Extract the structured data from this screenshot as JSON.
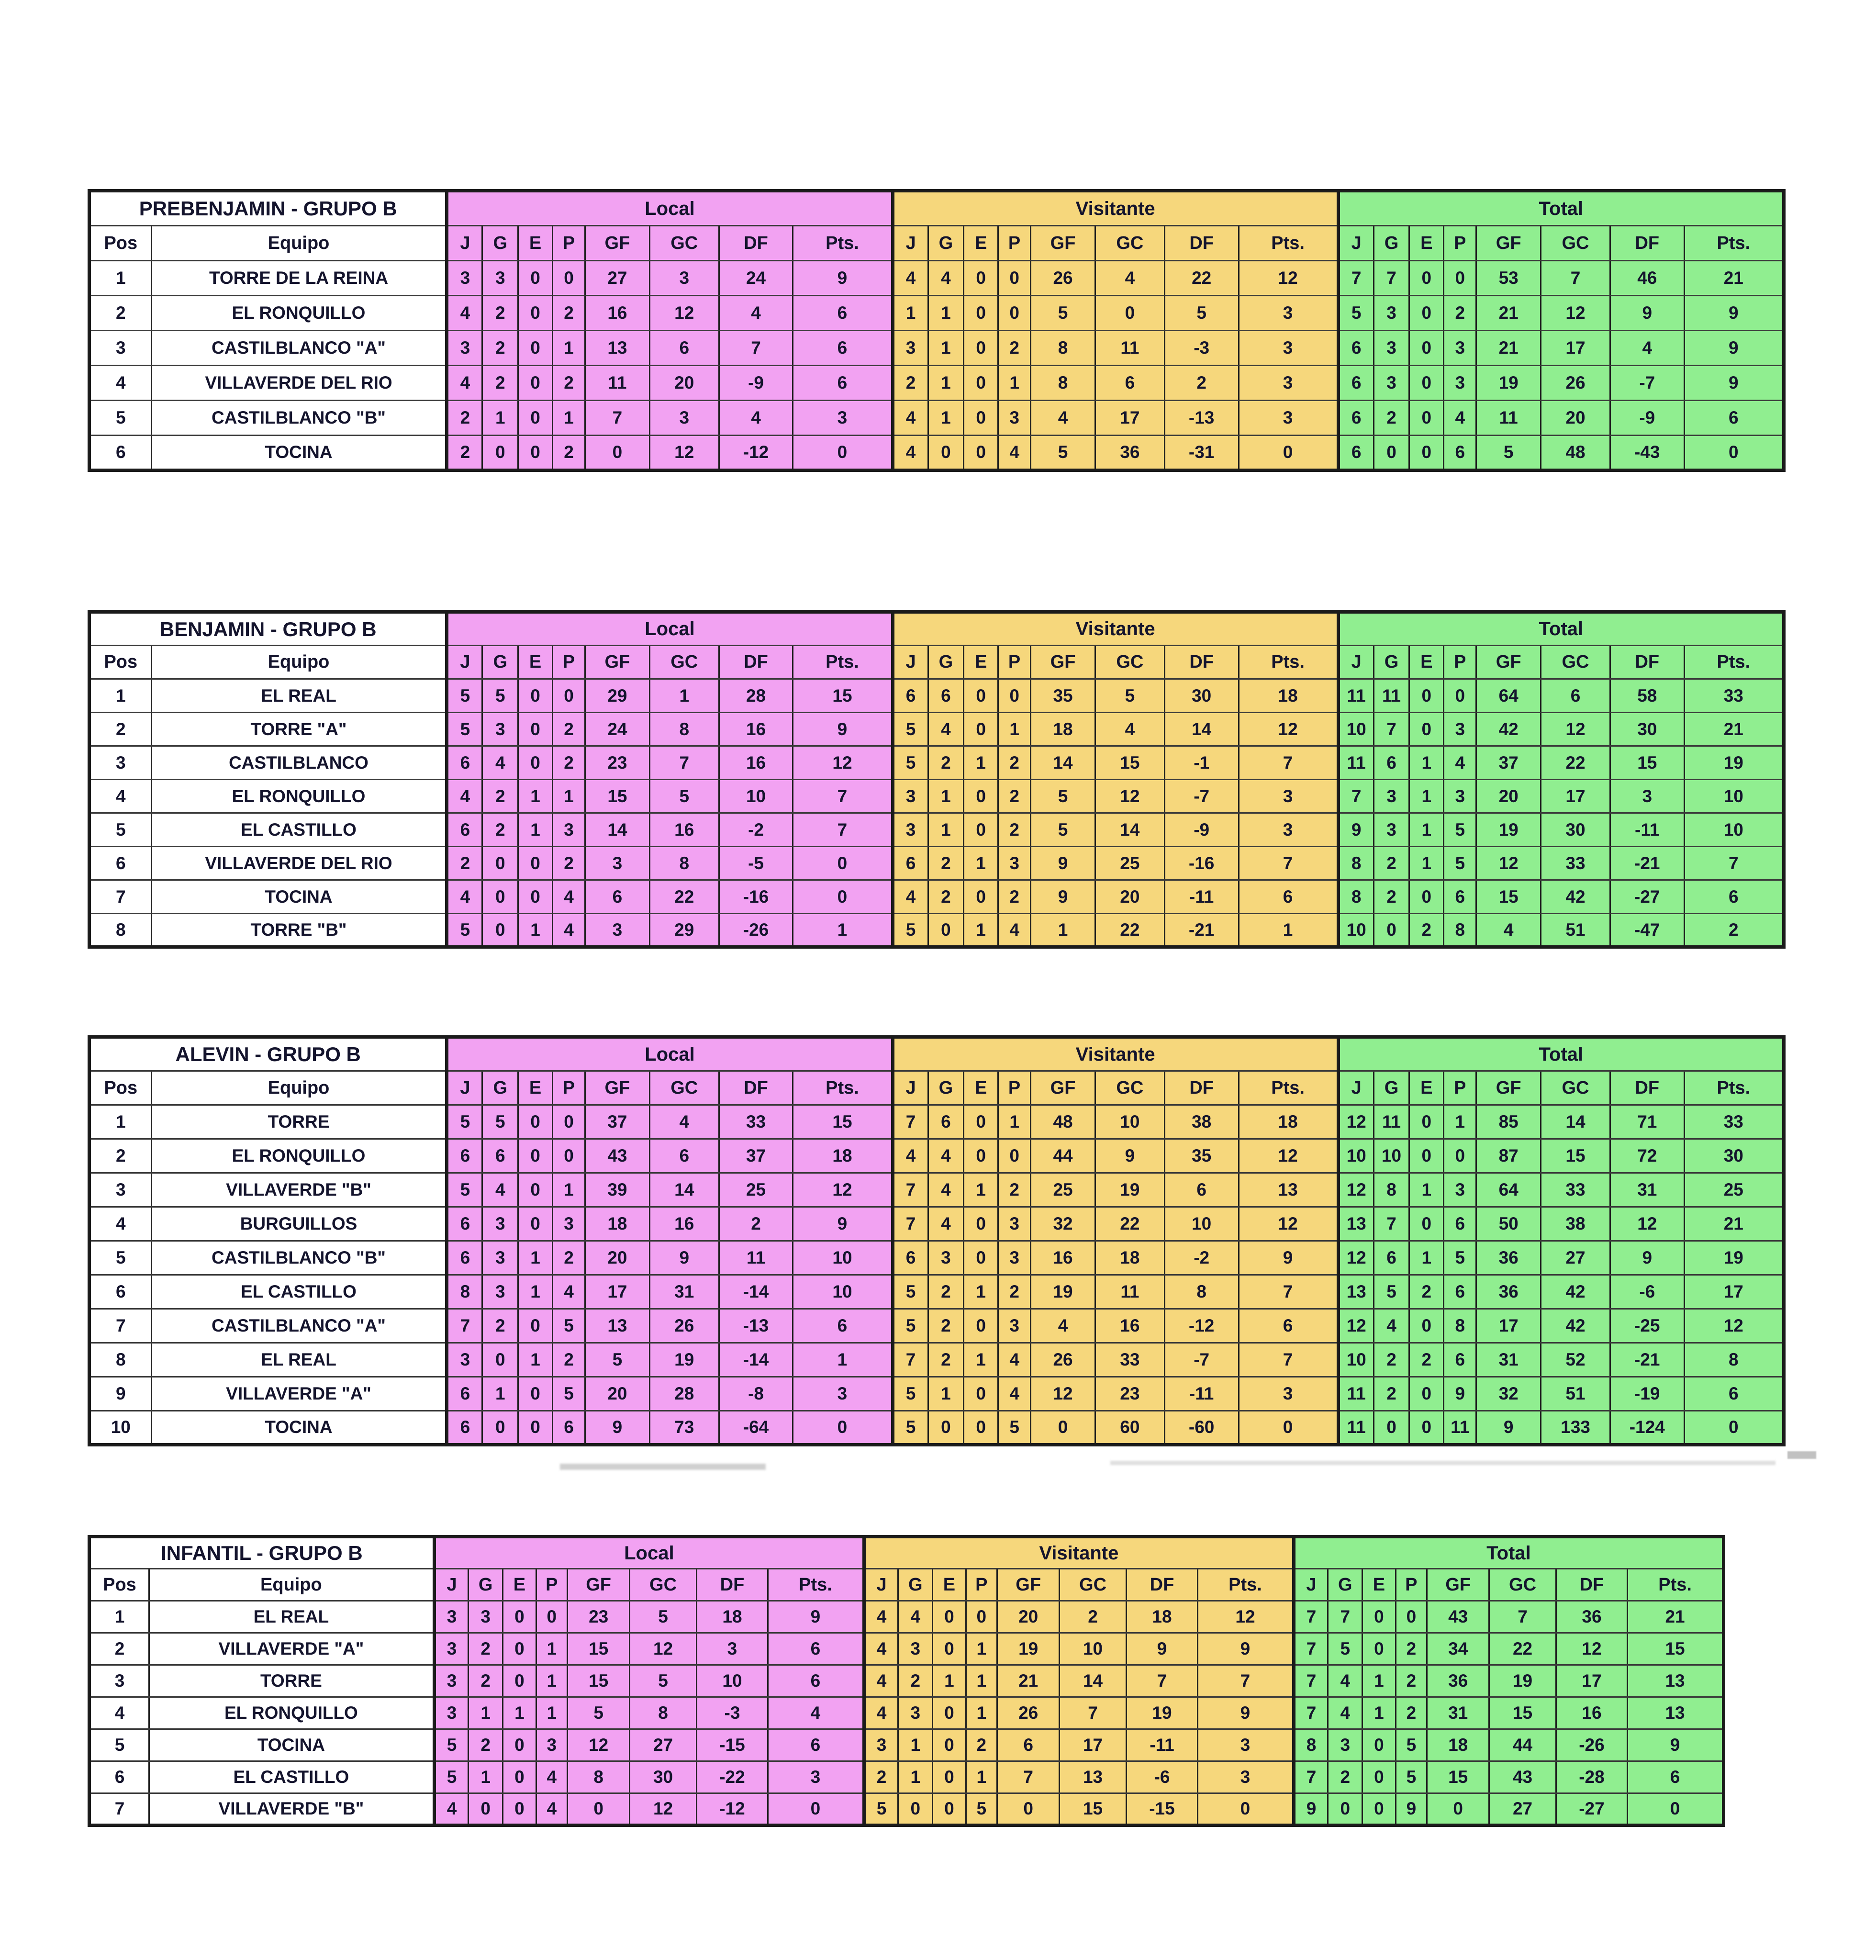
{
  "colors": {
    "local": "#f2a2f2",
    "visitante": "#f6d77c",
    "total": "#90ee90",
    "text": "#14142d",
    "border": "#1b1b1b"
  },
  "labels": {
    "pos": "Pos",
    "equipo": "Equipo",
    "sections": [
      "Local",
      "Visitante",
      "Total"
    ],
    "stats": [
      "J",
      "G",
      "E",
      "P",
      "GF",
      "GC",
      "DF",
      "Pts."
    ]
  },
  "tables": [
    {
      "title": "PREBENJAMIN - GRUPO B",
      "rows": [
        {
          "pos": "1",
          "team": "TORRE DE LA REINA",
          "local": [
            3,
            3,
            0,
            0,
            27,
            3,
            24,
            9
          ],
          "visitante": [
            4,
            4,
            0,
            0,
            26,
            4,
            22,
            12
          ],
          "total": [
            7,
            7,
            0,
            0,
            53,
            7,
            46,
            21
          ]
        },
        {
          "pos": "2",
          "team": "EL RONQUILLO",
          "local": [
            4,
            2,
            0,
            2,
            16,
            12,
            4,
            6
          ],
          "visitante": [
            1,
            1,
            0,
            0,
            5,
            0,
            5,
            3
          ],
          "total": [
            5,
            3,
            0,
            2,
            21,
            12,
            9,
            9
          ]
        },
        {
          "pos": "3",
          "team": "CASTILBLANCO \"A\"",
          "local": [
            3,
            2,
            0,
            1,
            13,
            6,
            7,
            6
          ],
          "visitante": [
            3,
            1,
            0,
            2,
            8,
            11,
            -3,
            3
          ],
          "total": [
            6,
            3,
            0,
            3,
            21,
            17,
            4,
            9
          ]
        },
        {
          "pos": "4",
          "team": "VILLAVERDE DEL RIO",
          "local": [
            4,
            2,
            0,
            2,
            11,
            20,
            -9,
            6
          ],
          "visitante": [
            2,
            1,
            0,
            1,
            8,
            6,
            2,
            3
          ],
          "total": [
            6,
            3,
            0,
            3,
            19,
            26,
            -7,
            9
          ]
        },
        {
          "pos": "5",
          "team": "CASTILBLANCO \"B\"",
          "local": [
            2,
            1,
            0,
            1,
            7,
            3,
            4,
            3
          ],
          "visitante": [
            4,
            1,
            0,
            3,
            4,
            17,
            -13,
            3
          ],
          "total": [
            6,
            2,
            0,
            4,
            11,
            20,
            -9,
            6
          ]
        },
        {
          "pos": "6",
          "team": "TOCINA",
          "local": [
            2,
            0,
            0,
            2,
            0,
            12,
            -12,
            0
          ],
          "visitante": [
            4,
            0,
            0,
            4,
            5,
            36,
            -31,
            0
          ],
          "total": [
            6,
            0,
            0,
            6,
            5,
            48,
            -43,
            0
          ]
        }
      ]
    },
    {
      "title": "BENJAMIN - GRUPO B",
      "rows": [
        {
          "pos": "1",
          "team": "EL REAL",
          "local": [
            5,
            5,
            0,
            0,
            29,
            1,
            28,
            15
          ],
          "visitante": [
            6,
            6,
            0,
            0,
            35,
            5,
            30,
            18
          ],
          "total": [
            11,
            11,
            0,
            0,
            64,
            6,
            58,
            33
          ]
        },
        {
          "pos": "2",
          "team": "TORRE \"A\"",
          "local": [
            5,
            3,
            0,
            2,
            24,
            8,
            16,
            9
          ],
          "visitante": [
            5,
            4,
            0,
            1,
            18,
            4,
            14,
            12
          ],
          "total": [
            10,
            7,
            0,
            3,
            42,
            12,
            30,
            21
          ]
        },
        {
          "pos": "3",
          "team": "CASTILBLANCO",
          "local": [
            6,
            4,
            0,
            2,
            23,
            7,
            16,
            12
          ],
          "visitante": [
            5,
            2,
            1,
            2,
            14,
            15,
            -1,
            7
          ],
          "total": [
            11,
            6,
            1,
            4,
            37,
            22,
            15,
            19
          ]
        },
        {
          "pos": "4",
          "team": "EL RONQUILLO",
          "local": [
            4,
            2,
            1,
            1,
            15,
            5,
            10,
            7
          ],
          "visitante": [
            3,
            1,
            0,
            2,
            5,
            12,
            -7,
            3
          ],
          "total": [
            7,
            3,
            1,
            3,
            20,
            17,
            3,
            10
          ]
        },
        {
          "pos": "5",
          "team": "EL CASTILLO",
          "local": [
            6,
            2,
            1,
            3,
            14,
            16,
            -2,
            7
          ],
          "visitante": [
            3,
            1,
            0,
            2,
            5,
            14,
            -9,
            3
          ],
          "total": [
            9,
            3,
            1,
            5,
            19,
            30,
            -11,
            10
          ]
        },
        {
          "pos": "6",
          "team": "VILLAVERDE DEL RIO",
          "local": [
            2,
            0,
            0,
            2,
            3,
            8,
            -5,
            0
          ],
          "visitante": [
            6,
            2,
            1,
            3,
            9,
            25,
            -16,
            7
          ],
          "total": [
            8,
            2,
            1,
            5,
            12,
            33,
            -21,
            7
          ]
        },
        {
          "pos": "7",
          "team": "TOCINA",
          "local": [
            4,
            0,
            0,
            4,
            6,
            22,
            -16,
            0
          ],
          "visitante": [
            4,
            2,
            0,
            2,
            9,
            20,
            -11,
            6
          ],
          "total": [
            8,
            2,
            0,
            6,
            15,
            42,
            -27,
            6
          ]
        },
        {
          "pos": "8",
          "team": "TORRE \"B\"",
          "local": [
            5,
            0,
            1,
            4,
            3,
            29,
            -26,
            1
          ],
          "visitante": [
            5,
            0,
            1,
            4,
            1,
            22,
            -21,
            1
          ],
          "total": [
            10,
            0,
            2,
            8,
            4,
            51,
            -47,
            2
          ]
        }
      ]
    },
    {
      "title": "ALEVIN - GRUPO B",
      "rows": [
        {
          "pos": "1",
          "team": "TORRE",
          "local": [
            5,
            5,
            0,
            0,
            37,
            4,
            33,
            15
          ],
          "visitante": [
            7,
            6,
            0,
            1,
            48,
            10,
            38,
            18
          ],
          "total": [
            12,
            11,
            0,
            1,
            85,
            14,
            71,
            33
          ]
        },
        {
          "pos": "2",
          "team": "EL RONQUILLO",
          "local": [
            6,
            6,
            0,
            0,
            43,
            6,
            37,
            18
          ],
          "visitante": [
            4,
            4,
            0,
            0,
            44,
            9,
            35,
            12
          ],
          "total": [
            10,
            10,
            0,
            0,
            87,
            15,
            72,
            30
          ]
        },
        {
          "pos": "3",
          "team": "VILLAVERDE \"B\"",
          "local": [
            5,
            4,
            0,
            1,
            39,
            14,
            25,
            12
          ],
          "visitante": [
            7,
            4,
            1,
            2,
            25,
            19,
            6,
            13
          ],
          "total": [
            12,
            8,
            1,
            3,
            64,
            33,
            31,
            25
          ]
        },
        {
          "pos": "4",
          "team": "BURGUILLOS",
          "local": [
            6,
            3,
            0,
            3,
            18,
            16,
            2,
            9
          ],
          "visitante": [
            7,
            4,
            0,
            3,
            32,
            22,
            10,
            12
          ],
          "total": [
            13,
            7,
            0,
            6,
            50,
            38,
            12,
            21
          ]
        },
        {
          "pos": "5",
          "team": "CASTILBLANCO \"B\"",
          "local": [
            6,
            3,
            1,
            2,
            20,
            9,
            11,
            10
          ],
          "visitante": [
            6,
            3,
            0,
            3,
            16,
            18,
            -2,
            9
          ],
          "total": [
            12,
            6,
            1,
            5,
            36,
            27,
            9,
            19
          ]
        },
        {
          "pos": "6",
          "team": "EL CASTILLO",
          "local": [
            8,
            3,
            1,
            4,
            17,
            31,
            -14,
            10
          ],
          "visitante": [
            5,
            2,
            1,
            2,
            19,
            11,
            8,
            7
          ],
          "total": [
            13,
            5,
            2,
            6,
            36,
            42,
            -6,
            17
          ]
        },
        {
          "pos": "7",
          "team": "CASTILBLANCO \"A\"",
          "local": [
            7,
            2,
            0,
            5,
            13,
            26,
            -13,
            6
          ],
          "visitante": [
            5,
            2,
            0,
            3,
            4,
            16,
            -12,
            6
          ],
          "total": [
            12,
            4,
            0,
            8,
            17,
            42,
            -25,
            12
          ]
        },
        {
          "pos": "8",
          "team": "EL REAL",
          "local": [
            3,
            0,
            1,
            2,
            5,
            19,
            -14,
            1
          ],
          "visitante": [
            7,
            2,
            1,
            4,
            26,
            33,
            -7,
            7
          ],
          "total": [
            10,
            2,
            2,
            6,
            31,
            52,
            -21,
            8
          ]
        },
        {
          "pos": "9",
          "team": "VILLAVERDE \"A\"",
          "local": [
            6,
            1,
            0,
            5,
            20,
            28,
            -8,
            3
          ],
          "visitante": [
            5,
            1,
            0,
            4,
            12,
            23,
            -11,
            3
          ],
          "total": [
            11,
            2,
            0,
            9,
            32,
            51,
            -19,
            6
          ]
        },
        {
          "pos": "10",
          "team": "TOCINA",
          "local": [
            6,
            0,
            0,
            6,
            9,
            73,
            -64,
            0
          ],
          "visitante": [
            5,
            0,
            0,
            5,
            0,
            60,
            -60,
            0
          ],
          "total": [
            11,
            0,
            0,
            11,
            9,
            133,
            -124,
            0
          ]
        }
      ]
    },
    {
      "title": "INFANTIL - GRUPO B",
      "rows": [
        {
          "pos": "1",
          "team": "EL REAL",
          "local": [
            3,
            3,
            0,
            0,
            23,
            5,
            18,
            9
          ],
          "visitante": [
            4,
            4,
            0,
            0,
            20,
            2,
            18,
            12
          ],
          "total": [
            7,
            7,
            0,
            0,
            43,
            7,
            36,
            21
          ]
        },
        {
          "pos": "2",
          "team": "VILLAVERDE \"A\"",
          "local": [
            3,
            2,
            0,
            1,
            15,
            12,
            3,
            6
          ],
          "visitante": [
            4,
            3,
            0,
            1,
            19,
            10,
            9,
            9
          ],
          "total": [
            7,
            5,
            0,
            2,
            34,
            22,
            12,
            15
          ]
        },
        {
          "pos": "3",
          "team": "TORRE",
          "local": [
            3,
            2,
            0,
            1,
            15,
            5,
            10,
            6
          ],
          "visitante": [
            4,
            2,
            1,
            1,
            21,
            14,
            7,
            7
          ],
          "total": [
            7,
            4,
            1,
            2,
            36,
            19,
            17,
            13
          ]
        },
        {
          "pos": "4",
          "team": "EL RONQUILLO",
          "local": [
            3,
            1,
            1,
            1,
            5,
            8,
            -3,
            4
          ],
          "visitante": [
            4,
            3,
            0,
            1,
            26,
            7,
            19,
            9
          ],
          "total": [
            7,
            4,
            1,
            2,
            31,
            15,
            16,
            13
          ]
        },
        {
          "pos": "5",
          "team": "TOCINA",
          "local": [
            5,
            2,
            0,
            3,
            12,
            27,
            -15,
            6
          ],
          "visitante": [
            3,
            1,
            0,
            2,
            6,
            17,
            -11,
            3
          ],
          "total": [
            8,
            3,
            0,
            5,
            18,
            44,
            -26,
            9
          ]
        },
        {
          "pos": "6",
          "team": "EL CASTILLO",
          "local": [
            5,
            1,
            0,
            4,
            8,
            30,
            -22,
            3
          ],
          "visitante": [
            2,
            1,
            0,
            1,
            7,
            13,
            -6,
            3
          ],
          "total": [
            7,
            2,
            0,
            5,
            15,
            43,
            -28,
            6
          ]
        },
        {
          "pos": "7",
          "team": "VILLAVERDE \"B\"",
          "local": [
            4,
            0,
            0,
            4,
            0,
            12,
            -12,
            0
          ],
          "visitante": [
            5,
            0,
            0,
            5,
            0,
            15,
            -15,
            0
          ],
          "total": [
            9,
            0,
            0,
            9,
            0,
            27,
            -27,
            0
          ]
        }
      ]
    }
  ]
}
